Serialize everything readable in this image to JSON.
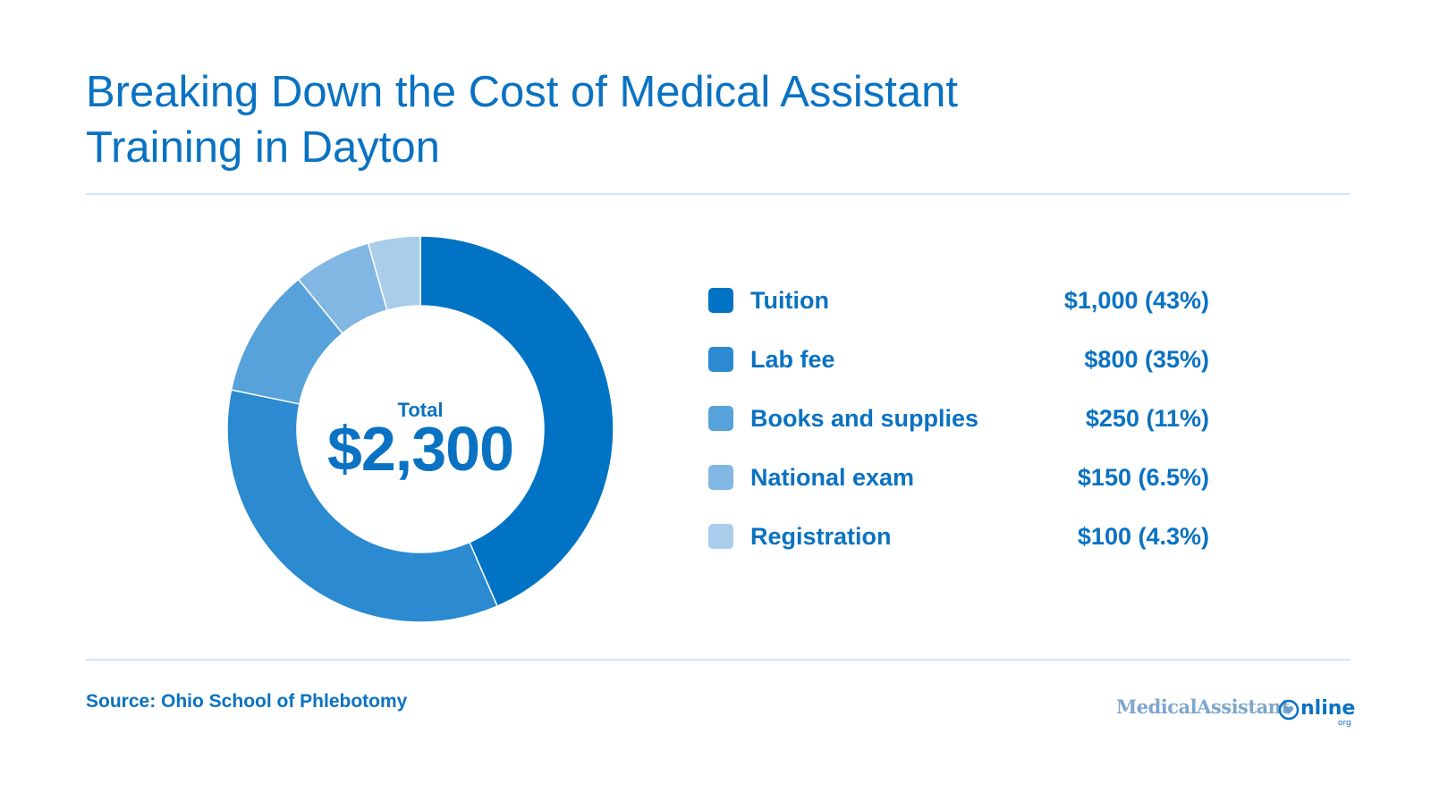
{
  "title_lines": [
    "Breaking Down the Cost of Medical Assistant",
    "Training in Dayton"
  ],
  "center": {
    "caption": "Total",
    "total": "$2,300"
  },
  "chart_data": {
    "type": "pie",
    "title": "Breaking Down the Cost of Medical Assistant Training in Dayton",
    "donut": true,
    "categories": [
      "Tuition",
      "Lab fee",
      "Books and supplies",
      "National exam",
      "Registration"
    ],
    "values": [
      1000,
      800,
      250,
      150,
      100
    ],
    "percent_labels": [
      "43%",
      "35%",
      "11%",
      "6.5%",
      "4.3%"
    ],
    "legend_values": [
      "$1,000 (43%)",
      "$800 (35%)",
      "$250 (11%)",
      "$150 (6.5%)",
      "$100 (4.3%)"
    ],
    "colors": [
      "#0073c4",
      "#2b8ad0",
      "#57a2da",
      "#82b7e3",
      "#a9cdea"
    ],
    "total": 2300,
    "legend_position": "right"
  },
  "source": "Source: Ohio School of Phlebotomy",
  "logo": {
    "part1": "MedicalAssistant",
    "part2": "nline",
    "suffix": "org"
  }
}
